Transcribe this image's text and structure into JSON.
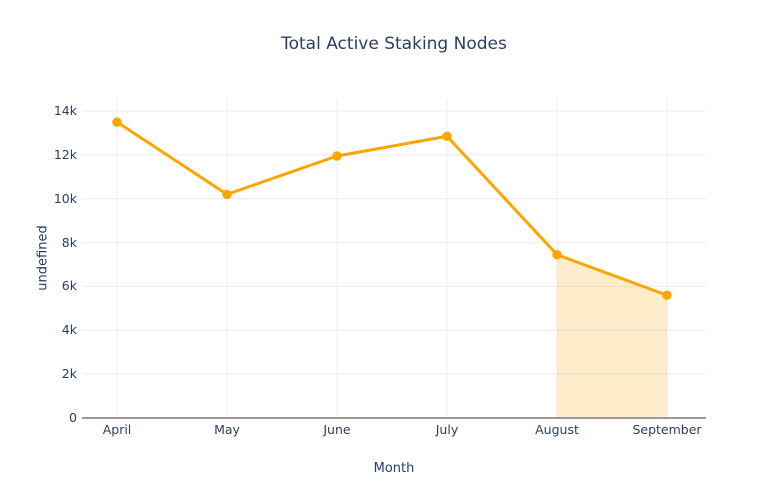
{
  "chart_data": {
    "type": "line",
    "title": "Total Active Staking Nodes",
    "xlabel": "Month",
    "ylabel": "undefined",
    "categories": [
      "April",
      "May",
      "June",
      "July",
      "August",
      "September"
    ],
    "series": [
      {
        "name": "Total Active Staking Nodes",
        "values": [
          13500,
          10200,
          11950,
          12850,
          7450,
          5600
        ]
      }
    ],
    "ylim": [
      0,
      14000
    ],
    "yticks": [
      {
        "value": 0,
        "label": "0"
      },
      {
        "value": 2000,
        "label": "2k"
      },
      {
        "value": 4000,
        "label": "4k"
      },
      {
        "value": 6000,
        "label": "6k"
      },
      {
        "value": 8000,
        "label": "8k"
      },
      {
        "value": 10000,
        "label": "10k"
      },
      {
        "value": 12000,
        "label": "12k"
      },
      {
        "value": 14000,
        "label": "14k"
      }
    ],
    "grid": true,
    "legend": false,
    "highlight_area": {
      "from_category": "August",
      "to_category": "September",
      "fill": "rgba(255,165,0,0.2)"
    }
  },
  "colors": {
    "line": "#ffa500",
    "marker": "#ffa500",
    "grid": "#eaecef",
    "axis_line": "#999999",
    "text": "#2a3f5f",
    "background": "#ffffff"
  }
}
